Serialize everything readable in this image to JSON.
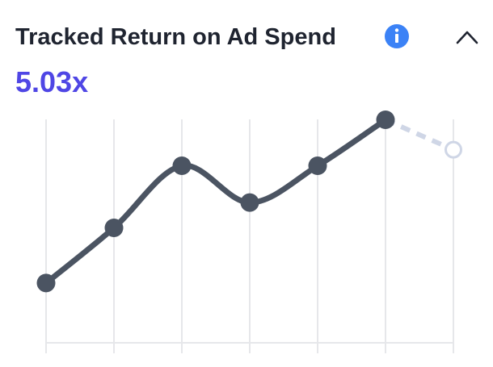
{
  "title": "Tracked Return on Ad Spend",
  "metric": "5.03x",
  "chart_data": {
    "type": "line",
    "categories": [
      null,
      null,
      null,
      null,
      null,
      null,
      null
    ],
    "series": [
      {
        "color": "#4b5462",
        "values": [
          26,
          50,
          77,
          61,
          77,
          97,
          null
        ]
      },
      {
        "color": "#cfd6e6",
        "values": [
          null,
          null,
          null,
          null,
          null,
          97,
          84
        ],
        "dashed": true
      }
    ],
    "ylim": [
      0,
      100
    ],
    "grid": true
  }
}
